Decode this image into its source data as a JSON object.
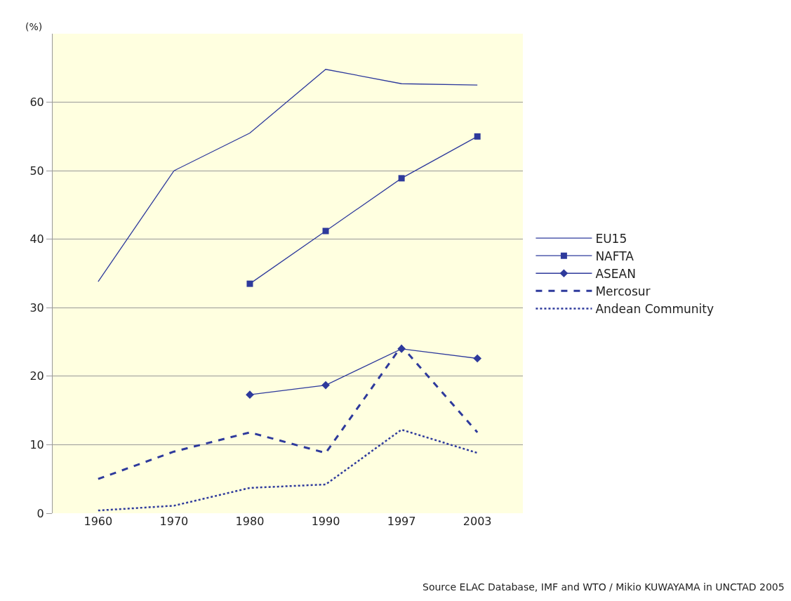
{
  "chart_data": {
    "type": "line",
    "ylabel": "(%)",
    "categories": [
      "1960",
      "1970",
      "1980",
      "1990",
      "1997",
      "2003"
    ],
    "series": [
      {
        "name": "EU15",
        "color": "#2e3a9c",
        "values": [
          33.8,
          50,
          55.5,
          64.8,
          62.7,
          62.5
        ],
        "marker": "none",
        "line_style": "solid"
      },
      {
        "name": "NAFTA",
        "color": "#2e3a9c",
        "values": [
          null,
          null,
          33.5,
          41.2,
          48.9,
          55
        ],
        "marker": "square",
        "line_style": "solid"
      },
      {
        "name": "ASEAN",
        "color": "#2e3a9c",
        "values": [
          null,
          null,
          17.3,
          18.7,
          24,
          22.6
        ],
        "marker": "diamond",
        "line_style": "solid"
      },
      {
        "name": "Mercosur",
        "color": "#2e3a9c",
        "values": [
          5,
          9,
          11.8,
          8.8,
          24.4,
          11.8
        ],
        "marker": "none",
        "line_style": "dashed"
      },
      {
        "name": "Andean Community",
        "color": "#2e3a9c",
        "values": [
          0.4,
          1.1,
          3.7,
          4.2,
          12.2,
          8.8
        ],
        "marker": "none",
        "line_style": "dotted"
      }
    ],
    "ylim": [
      0,
      70
    ],
    "yticks": [
      0,
      10,
      20,
      30,
      40,
      50,
      60
    ],
    "grid": "y",
    "legend": "right",
    "annotations": [
      "Source ELAC Database, IMF and WTO / Mikio KUWAYAMA in UNCTAD 2005"
    ]
  }
}
